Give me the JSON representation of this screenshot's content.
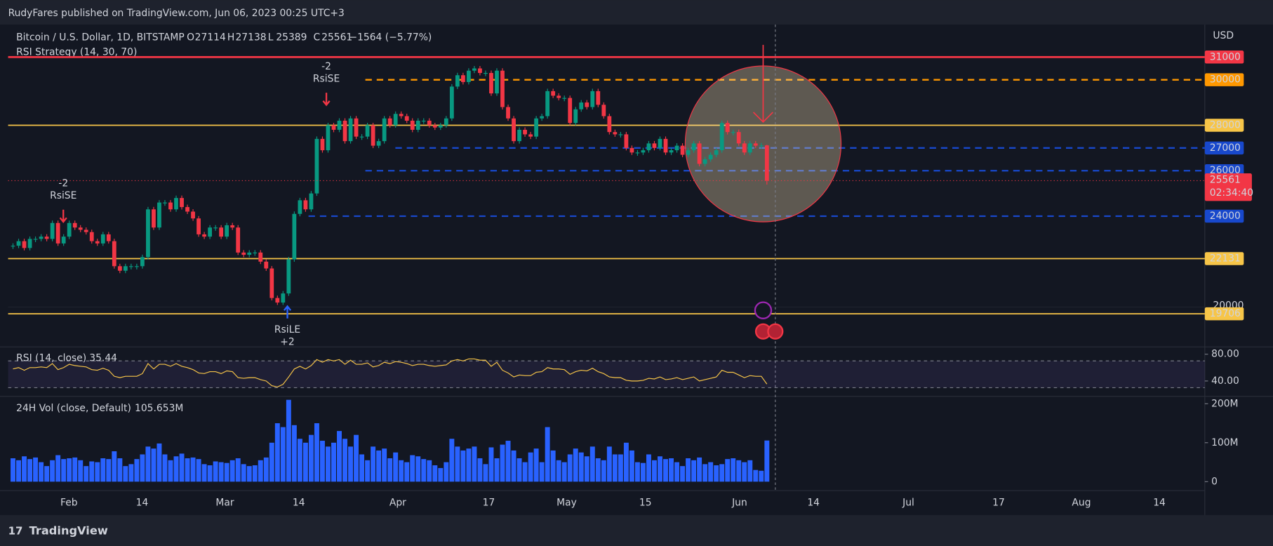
{
  "header": {
    "publisher": "RudyFares published on TradingView.com, Jun 06, 2023 00:25 UTC+3",
    "currency": "USD",
    "footer": "TradingView"
  },
  "chart_data": {
    "type": "candlestick",
    "title": "Bitcoin / U.S. Dollar, 1D, BITSTAMP",
    "indicator": "RSI Strategy (14, 30, 70)",
    "ohlc_labels": [
      "O",
      "H",
      "L",
      "C"
    ],
    "ohlc": {
      "open": 27114,
      "high": 27138,
      "low": 25389,
      "close": 25561
    },
    "change": "−1564 (−5.77%)",
    "closes": [
      22700,
      22900,
      22600,
      23000,
      23000,
      23100,
      23000,
      23700,
      22800,
      23100,
      23700,
      23500,
      23400,
      23300,
      22900,
      22800,
      23200,
      22900,
      21800,
      21600,
      21800,
      21800,
      21800,
      22200,
      24300,
      23500,
      24600,
      24600,
      24300,
      24800,
      24400,
      24200,
      23900,
      23200,
      23100,
      23500,
      23500,
      23100,
      23600,
      23500,
      22400,
      22300,
      22400,
      22400,
      22000,
      21700,
      20400,
      20200,
      20600,
      22100,
      24100,
      24700,
      24300,
      25000,
      27400,
      26900,
      28000,
      27800,
      28200,
      27300,
      28300,
      27500,
      27500,
      28000,
      27100,
      27300,
      28300,
      28000,
      28500,
      28400,
      28200,
      27800,
      28200,
      28200,
      28000,
      27900,
      28000,
      28300,
      29700,
      30200,
      29900,
      30400,
      30500,
      30300,
      30300,
      29400,
      30400,
      28800,
      28300,
      27300,
      27800,
      27600,
      27500,
      28300,
      28400,
      29500,
      29300,
      29200,
      29200,
      28100,
      28700,
      29000,
      28800,
      29500,
      28900,
      28400,
      27700,
      27600,
      27600,
      27000,
      26800,
      26800,
      26900,
      27200,
      27000,
      27400,
      26800,
      26900,
      27100,
      26700,
      26900,
      27200,
      26300,
      26500,
      26700,
      26900,
      28100,
      27700,
      27700,
      27200,
      26800,
      27200,
      27100,
      27114
    ],
    "up_color": "#089981",
    "down_color": "#f23645",
    "ylim": [
      18321,
      32429
    ],
    "levels": [
      {
        "value": 31000,
        "color": "#f23645",
        "dashed": false,
        "text_color": "#ffffff"
      },
      {
        "value": 30000,
        "color": "#ff9800",
        "dashed": true,
        "text_color": "#131722"
      },
      {
        "value": 28000,
        "color": "#f7c548",
        "dashed": false,
        "text_color": "#131722"
      },
      {
        "value": 27000,
        "color": "#1848cc",
        "dashed": true,
        "text_color": "#ffffff"
      },
      {
        "value": 26000,
        "color": "#1848cc",
        "dashed": true,
        "text_color": "#ffffff"
      },
      {
        "value": 24000,
        "color": "#1848cc",
        "dashed": true,
        "text_color": "#ffffff"
      },
      {
        "value": 22131,
        "color": "#f7c548",
        "dashed": false,
        "text_color": "#131722"
      },
      {
        "value": 19706,
        "color": "#f7c548",
        "dashed": false,
        "text_color": "#131722"
      }
    ],
    "yticks": [
      20000
    ],
    "countdown": "02:34:40",
    "xtick_labels": [
      "Feb",
      "14",
      "Mar",
      "14",
      "Apr",
      "17",
      "May",
      "15",
      "Jun",
      "14",
      "Jul",
      "17",
      "Aug",
      "14"
    ],
    "annotations": [
      {
        "lines": [
          "-2",
          "RsiSE"
        ],
        "color": "#f23645"
      },
      {
        "lines": [
          "-2",
          "RsiSE"
        ],
        "color": "#f23645"
      },
      {
        "lines": [
          "RsiLE",
          "+2"
        ],
        "color": "#2962ff"
      }
    ]
  },
  "rsi": {
    "title": "RSI (14, close)",
    "color": "#f7c548",
    "values": [
      58,
      60,
      56,
      60,
      60,
      61,
      60,
      66,
      57,
      60,
      65,
      63,
      62,
      61,
      57,
      56,
      59,
      56,
      47,
      45,
      47,
      47,
      47,
      51,
      66,
      58,
      65,
      65,
      62,
      66,
      62,
      60,
      57,
      52,
      51,
      54,
      54,
      51,
      55,
      54,
      45,
      44,
      45,
      45,
      42,
      40,
      33,
      31,
      35,
      46,
      58,
      62,
      58,
      63,
      72,
      68,
      72,
      70,
      72,
      65,
      71,
      65,
      65,
      67,
      61,
      63,
      68,
      66,
      69,
      68,
      66,
      63,
      65,
      65,
      63,
      62,
      63,
      64,
      70,
      72,
      70,
      73,
      73,
      71,
      71,
      62,
      68,
      56,
      52,
      46,
      49,
      48,
      48,
      53,
      54,
      60,
      58,
      58,
      57,
      50,
      54,
      56,
      55,
      59,
      54,
      51,
      46,
      45,
      45,
      41,
      40,
      40,
      41,
      44,
      43,
      46,
      42,
      43,
      45,
      42,
      44,
      46,
      40,
      42,
      44,
      46,
      56,
      53,
      53,
      49,
      45,
      48,
      47,
      47,
      35.44
    ],
    "ylim": [
      21.8,
      87.3
    ],
    "yticks": [
      {
        "value": 80,
        "label": "80.00"
      },
      {
        "value": 40,
        "label": "40.00"
      }
    ],
    "bands": [
      30,
      70
    ]
  },
  "volume": {
    "title": "24H Vol (close, Default)",
    "color": "#2962ff",
    "values": [
      60,
      55,
      65,
      58,
      62,
      50,
      40,
      55,
      68,
      58,
      60,
      62,
      55,
      40,
      52,
      50,
      60,
      58,
      78,
      60,
      40,
      45,
      58,
      70,
      90,
      85,
      98,
      70,
      55,
      65,
      72,
      60,
      62,
      58,
      45,
      42,
      52,
      50,
      48,
      55,
      60,
      45,
      40,
      42,
      55,
      62,
      100,
      150,
      140,
      210,
      145,
      110,
      100,
      120,
      150,
      105,
      90,
      100,
      130,
      110,
      90,
      120,
      70,
      55,
      90,
      80,
      85,
      60,
      75,
      55,
      50,
      68,
      65,
      58,
      55,
      42,
      35,
      50,
      110,
      90,
      80,
      85,
      90,
      60,
      45,
      88,
      60,
      95,
      105,
      80,
      60,
      50,
      75,
      85,
      50,
      140,
      80,
      55,
      50,
      70,
      85,
      75,
      65,
      90,
      60,
      55,
      90,
      70,
      70,
      100,
      80,
      50,
      48,
      70,
      55,
      65,
      58,
      60,
      50,
      40,
      60,
      55,
      62,
      45,
      50,
      42,
      45,
      58,
      60,
      55,
      50,
      55,
      30,
      28,
      105.653
    ],
    "last_value_label": "105.653M",
    "ylim": [
      -10.4,
      214.6
    ],
    "yticks": [
      {
        "value": 200,
        "label": "200M"
      },
      {
        "value": 100,
        "label": "100M"
      },
      0
    ]
  }
}
